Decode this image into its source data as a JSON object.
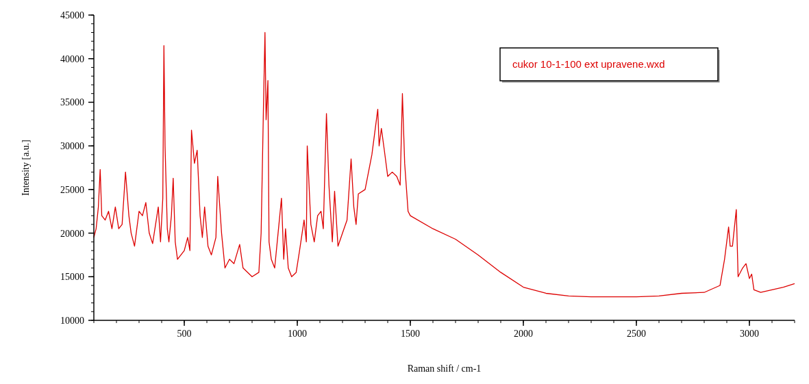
{
  "chart_data": {
    "type": "line",
    "xlabel": "Raman shift / cm-1",
    "ylabel": "Intensity [a.u.]",
    "xlim": [
      100,
      3200
    ],
    "ylim": [
      10000,
      45000
    ],
    "xticks": [
      500,
      1000,
      1500,
      2000,
      2500,
      3000
    ],
    "yticks": [
      10000,
      15000,
      20000,
      25000,
      30000,
      35000,
      40000,
      45000
    ],
    "legend": "top right",
    "grid": false,
    "series": [
      {
        "name": "cukor 10-1-100 ext upravene.wxd",
        "color": "#dd0000",
        "x": [
          100,
          110,
          120,
          128,
          135,
          150,
          165,
          180,
          195,
          210,
          225,
          240,
          255,
          265,
          280,
          300,
          315,
          330,
          345,
          360,
          385,
          395,
          405,
          410,
          415,
          425,
          432,
          443,
          451,
          460,
          470,
          500,
          515,
          525,
          532,
          545,
          557,
          570,
          580,
          590,
          605,
          620,
          640,
          648,
          665,
          680,
          700,
          720,
          745,
          760,
          800,
          830,
          840,
          850,
          857,
          862,
          870,
          875,
          885,
          900,
          915,
          930,
          940,
          948,
          960,
          975,
          995,
          1010,
          1030,
          1040,
          1044,
          1060,
          1075,
          1090,
          1105,
          1115,
          1129,
          1140,
          1155,
          1165,
          1180,
          1200,
          1220,
          1238,
          1250,
          1260,
          1270,
          1300,
          1330,
          1356,
          1362,
          1372,
          1385,
          1400,
          1420,
          1440,
          1455,
          1465,
          1475,
          1490,
          1500,
          1600,
          1700,
          1800,
          1900,
          2000,
          2100,
          2200,
          2300,
          2400,
          2500,
          2600,
          2700,
          2800,
          2870,
          2890,
          2908,
          2915,
          2925,
          2942,
          2950,
          2970,
          2985,
          3000,
          3010,
          3020,
          3050,
          3100,
          3150,
          3200
        ],
        "values": [
          19500,
          20500,
          23000,
          27300,
          22000,
          21500,
          22500,
          20500,
          23000,
          20500,
          21000,
          27000,
          22000,
          20000,
          18500,
          22500,
          22000,
          23500,
          20000,
          18800,
          23000,
          19000,
          24000,
          41500,
          30000,
          20500,
          19000,
          22000,
          26300,
          19000,
          17000,
          18000,
          19500,
          18000,
          31800,
          28000,
          29500,
          22000,
          19500,
          23000,
          18500,
          17500,
          19500,
          26500,
          20000,
          16000,
          17000,
          16500,
          18700,
          16000,
          15000,
          15500,
          20000,
          34000,
          43000,
          33000,
          37500,
          19000,
          17000,
          16000,
          20000,
          24000,
          17000,
          20500,
          16000,
          15000,
          15500,
          18000,
          21500,
          19000,
          30000,
          21000,
          19000,
          22000,
          22500,
          20500,
          33700,
          25500,
          19000,
          24800,
          18500,
          20000,
          21500,
          28500,
          23000,
          21000,
          24500,
          25000,
          29000,
          34200,
          30000,
          32000,
          29500,
          26500,
          27000,
          26500,
          25500,
          36000,
          28000,
          22500,
          22000,
          20500,
          19300,
          17500,
          15500,
          13800,
          13100,
          12800,
          12700,
          12700,
          12700,
          12800,
          13100,
          13200,
          14000,
          17000,
          20700,
          18500,
          18500,
          22700,
          15000,
          16000,
          16500,
          14800,
          15300,
          13500,
          13200,
          13500,
          13800,
          14200
        ]
      }
    ]
  }
}
